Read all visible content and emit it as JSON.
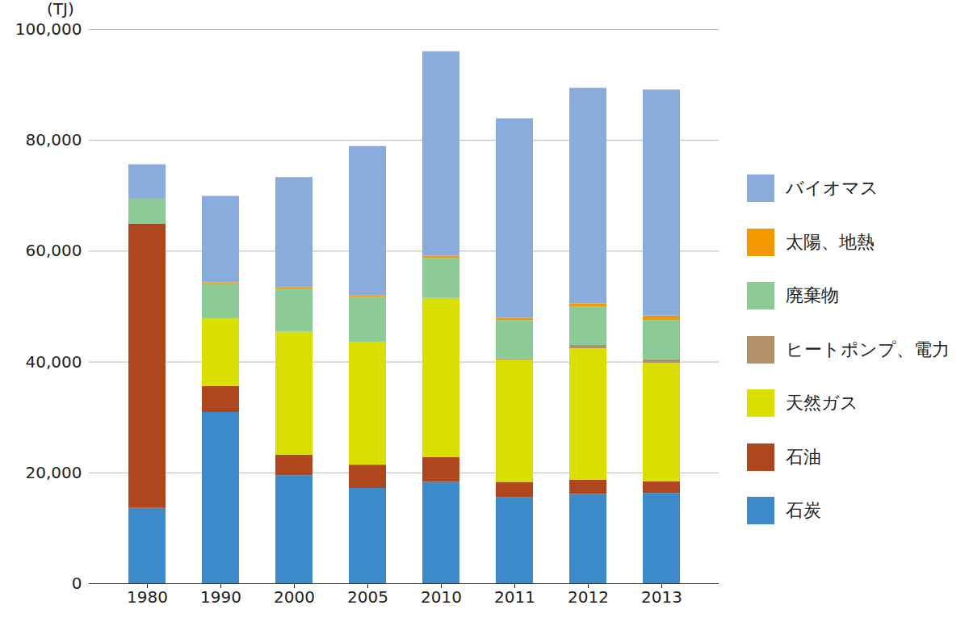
{
  "chart_data": {
    "type": "bar",
    "stacked": true,
    "y_label": "(TJ)",
    "categories": [
      "1980",
      "1990",
      "2000",
      "2005",
      "2010",
      "2011",
      "2012",
      "2013"
    ],
    "series": [
      {
        "name": "石炭",
        "color": "#3d8acb",
        "values": [
          13600,
          30900,
          19500,
          17200,
          18300,
          15500,
          16100,
          16300
        ]
      },
      {
        "name": "石油",
        "color": "#b0461d",
        "values": [
          51300,
          4700,
          3700,
          4200,
          4500,
          2800,
          2600,
          2100
        ]
      },
      {
        "name": "天然ガス",
        "color": "#d9e000",
        "values": [
          0,
          12200,
          22200,
          22200,
          28600,
          22000,
          23700,
          21400
        ]
      },
      {
        "name": "ヒートポンプ、電力",
        "color": "#b58e6a",
        "values": [
          0,
          0,
          0,
          0,
          100,
          200,
          600,
          600
        ]
      },
      {
        "name": "廃棄物",
        "color": "#8ccb98",
        "values": [
          4500,
          6300,
          7800,
          8100,
          7200,
          7000,
          6900,
          7100
        ]
      },
      {
        "name": "太陽、地熱",
        "color": "#f39800",
        "values": [
          0,
          200,
          200,
          300,
          400,
          400,
          600,
          800
        ]
      },
      {
        "name": "バイオマス",
        "color": "#8aacdc",
        "values": [
          6200,
          15600,
          19900,
          26900,
          36900,
          36000,
          38900,
          40800
        ]
      }
    ],
    "ylim": [
      0,
      100000
    ],
    "yticks": [
      0,
      {
        "value": 20000,
        "label": "20,000"
      },
      {
        "value": 40000,
        "label": "40,000"
      },
      {
        "value": 60000,
        "label": "60,000"
      },
      {
        "value": 80000,
        "label": "80,000"
      },
      {
        "value": 100000,
        "label": "100,000"
      }
    ],
    "grid": true,
    "legend": "right"
  }
}
